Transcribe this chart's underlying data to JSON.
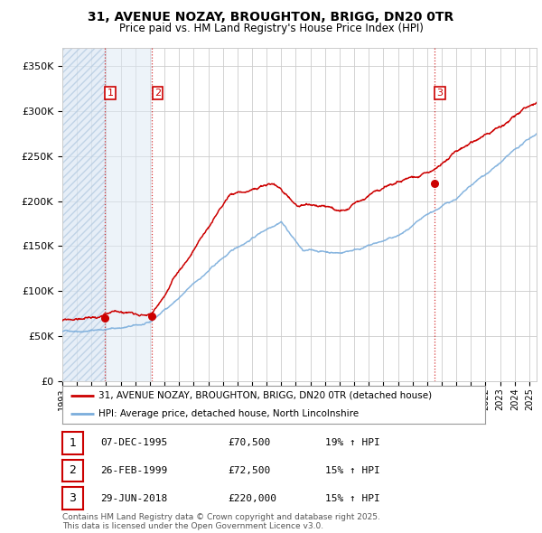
{
  "title_line1": "31, AVENUE NOZAY, BROUGHTON, BRIGG, DN20 0TR",
  "title_line2": "Price paid vs. HM Land Registry's House Price Index (HPI)",
  "ylim": [
    0,
    370000
  ],
  "yticks": [
    0,
    50000,
    100000,
    150000,
    200000,
    250000,
    300000,
    350000
  ],
  "ytick_labels": [
    "£0",
    "£50K",
    "£100K",
    "£150K",
    "£200K",
    "£250K",
    "£300K",
    "£350K"
  ],
  "background_color": "#ffffff",
  "grid_color": "#cccccc",
  "line1_color": "#cc0000",
  "line2_color": "#7aaddc",
  "sale1_date_x": 1995.92,
  "sale1_price": 70500,
  "sale1_label": "1",
  "sale2_date_x": 1999.15,
  "sale2_price": 72500,
  "sale2_label": "2",
  "sale3_date_x": 2018.5,
  "sale3_price": 220000,
  "sale3_label": "3",
  "legend_line1": "31, AVENUE NOZAY, BROUGHTON, BRIGG, DN20 0TR (detached house)",
  "legend_line2": "HPI: Average price, detached house, North Lincolnshire",
  "table_rows": [
    {
      "num": "1",
      "date": "07-DEC-1995",
      "price": "£70,500",
      "hpi": "19% ↑ HPI"
    },
    {
      "num": "2",
      "date": "26-FEB-1999",
      "price": "£72,500",
      "hpi": "15% ↑ HPI"
    },
    {
      "num": "3",
      "date": "29-JUN-2018",
      "price": "£220,000",
      "hpi": "15% ↑ HPI"
    }
  ],
  "footer": "Contains HM Land Registry data © Crown copyright and database right 2025.\nThis data is licensed under the Open Government Licence v3.0.",
  "xmin": 1993,
  "xmax": 2025.5
}
